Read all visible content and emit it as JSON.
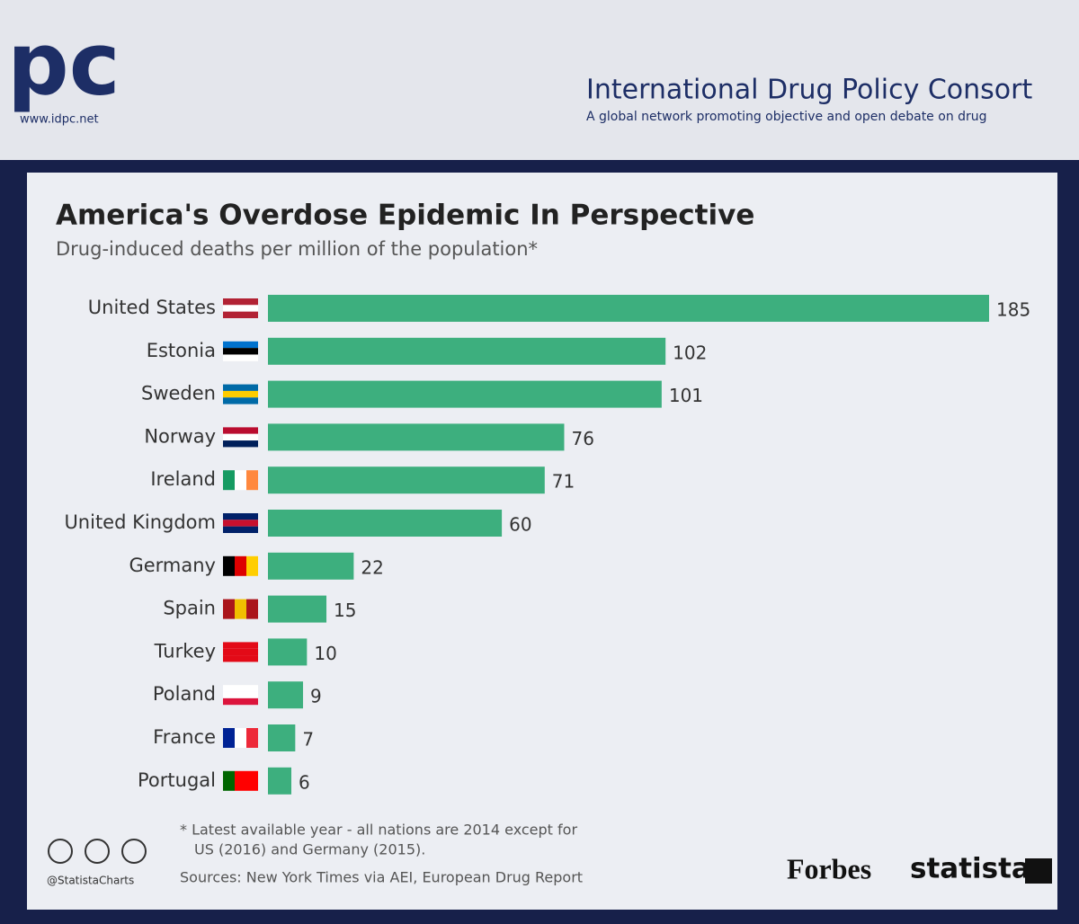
{
  "header": {
    "logo": "pc",
    "url": "www.idpc.net",
    "title": "International Drug Policy Consort",
    "tagline": "A global network promoting objective and open debate on drug"
  },
  "chart_data": {
    "type": "hbar",
    "title": "America's Overdose Epidemic In Perspective",
    "subtitle": "Drug-induced deaths per million of the population*",
    "categories": [
      "United States",
      "Estonia",
      "Sweden",
      "Norway",
      "Ireland",
      "United Kingdom",
      "Germany",
      "Spain",
      "Turkey",
      "Poland",
      "France",
      "Portugal"
    ],
    "values": [
      185,
      102,
      101,
      76,
      71,
      60,
      22,
      15,
      10,
      9,
      7,
      6
    ],
    "color": "#3daf7e",
    "footnote": [
      "* Latest available year - all nations are 2014 except for",
      "US (2016) and Germany (2015)."
    ],
    "source": "Sources: New York Times via AEI, European Drug Report",
    "credit": "@StatistaCharts",
    "brands": [
      "Forbes",
      "statista"
    ]
  }
}
